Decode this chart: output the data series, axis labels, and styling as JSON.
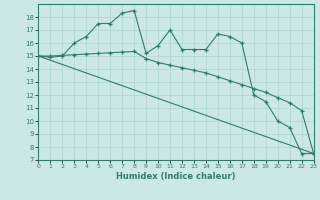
{
  "line1_x": [
    0,
    1,
    2,
    3,
    4,
    5,
    6,
    7,
    8,
    9,
    10,
    11,
    12,
    13,
    14,
    15,
    16,
    17,
    18,
    19,
    20,
    21,
    22,
    23
  ],
  "line1_y": [
    15.0,
    14.9,
    15.0,
    16.0,
    16.5,
    17.5,
    17.5,
    18.3,
    18.5,
    15.2,
    15.8,
    17.0,
    15.5,
    15.5,
    15.5,
    16.7,
    16.5,
    16.0,
    12.0,
    11.5,
    10.0,
    9.5,
    7.5,
    7.5
  ],
  "line2_x": [
    0,
    1,
    2,
    3,
    4,
    5,
    6,
    7,
    8,
    9,
    10,
    11,
    12,
    13,
    14,
    15,
    16,
    17,
    18,
    19,
    20,
    21,
    22,
    23
  ],
  "line2_y": [
    15.0,
    15.0,
    15.05,
    15.1,
    15.15,
    15.2,
    15.25,
    15.3,
    15.35,
    14.8,
    14.5,
    14.3,
    14.1,
    13.9,
    13.7,
    13.4,
    13.1,
    12.8,
    12.5,
    12.2,
    11.8,
    11.4,
    10.8,
    7.5
  ],
  "line3_x": [
    0,
    23
  ],
  "line3_y": [
    15.0,
    7.5
  ],
  "color": "#2e7d6e",
  "bg_color": "#cce8e4",
  "grid_color": "#b0d4d0",
  "xlabel": "Humidex (Indice chaleur)",
  "ylim": [
    7,
    19
  ],
  "xlim": [
    0,
    23
  ],
  "yticks": [
    7,
    8,
    9,
    10,
    11,
    12,
    13,
    14,
    15,
    16,
    17,
    18
  ],
  "xticks": [
    0,
    1,
    2,
    3,
    4,
    5,
    6,
    7,
    8,
    9,
    10,
    11,
    12,
    13,
    14,
    15,
    16,
    17,
    18,
    19,
    20,
    21,
    22,
    23
  ]
}
